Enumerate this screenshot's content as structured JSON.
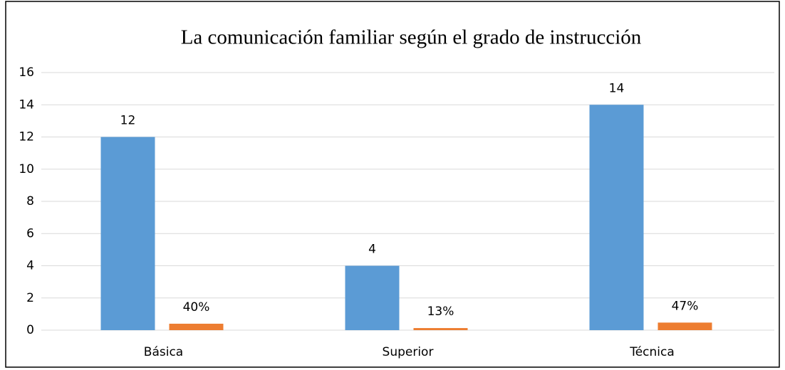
{
  "chart_data": {
    "type": "bar",
    "title": "La comunicación familiar según el grado de instrucción",
    "categories": [
      "Básica",
      "Superior",
      "Técnica"
    ],
    "series": [
      {
        "color": "#5b9bd5",
        "values": [
          12,
          4,
          14
        ]
      },
      {
        "color": "#ed7d31",
        "values": [
          0.4,
          0.13,
          0.47
        ],
        "value_labels": [
          "40%",
          "13%",
          "47%"
        ]
      }
    ],
    "ylim": [
      0,
      16
    ],
    "yticks": [
      0,
      2,
      4,
      6,
      8,
      10,
      12,
      14,
      16
    ],
    "grid": true
  }
}
